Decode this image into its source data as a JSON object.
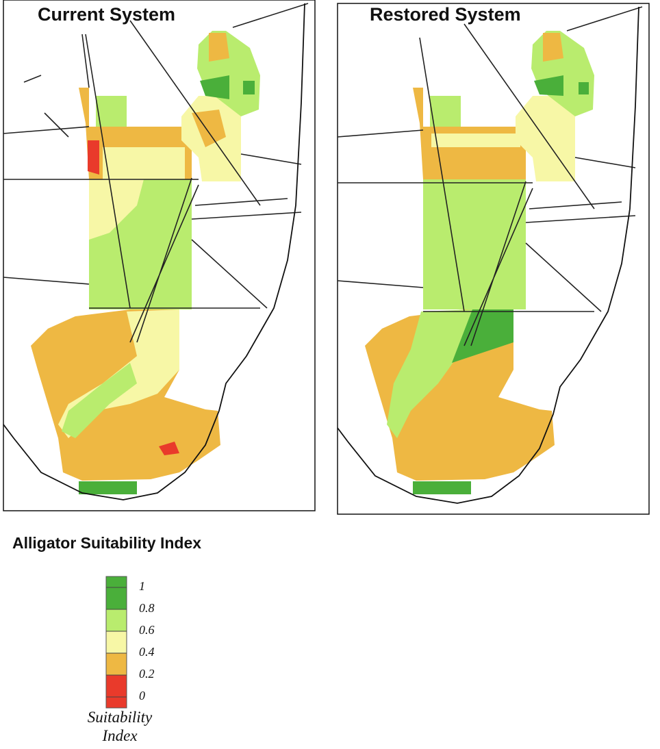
{
  "panels": [
    {
      "title": "Current System"
    },
    {
      "title": "Restored System"
    }
  ],
  "legend": {
    "title": "Alligator Suitability Index",
    "ticks": [
      1,
      0.8,
      0.6,
      0.4,
      0.2,
      0
    ],
    "colors": [
      "#4aaf3a",
      "#b9ec6e",
      "#f7f7a6",
      "#eeb843",
      "#e93a2b"
    ],
    "caption": "Suitability Index"
  }
}
